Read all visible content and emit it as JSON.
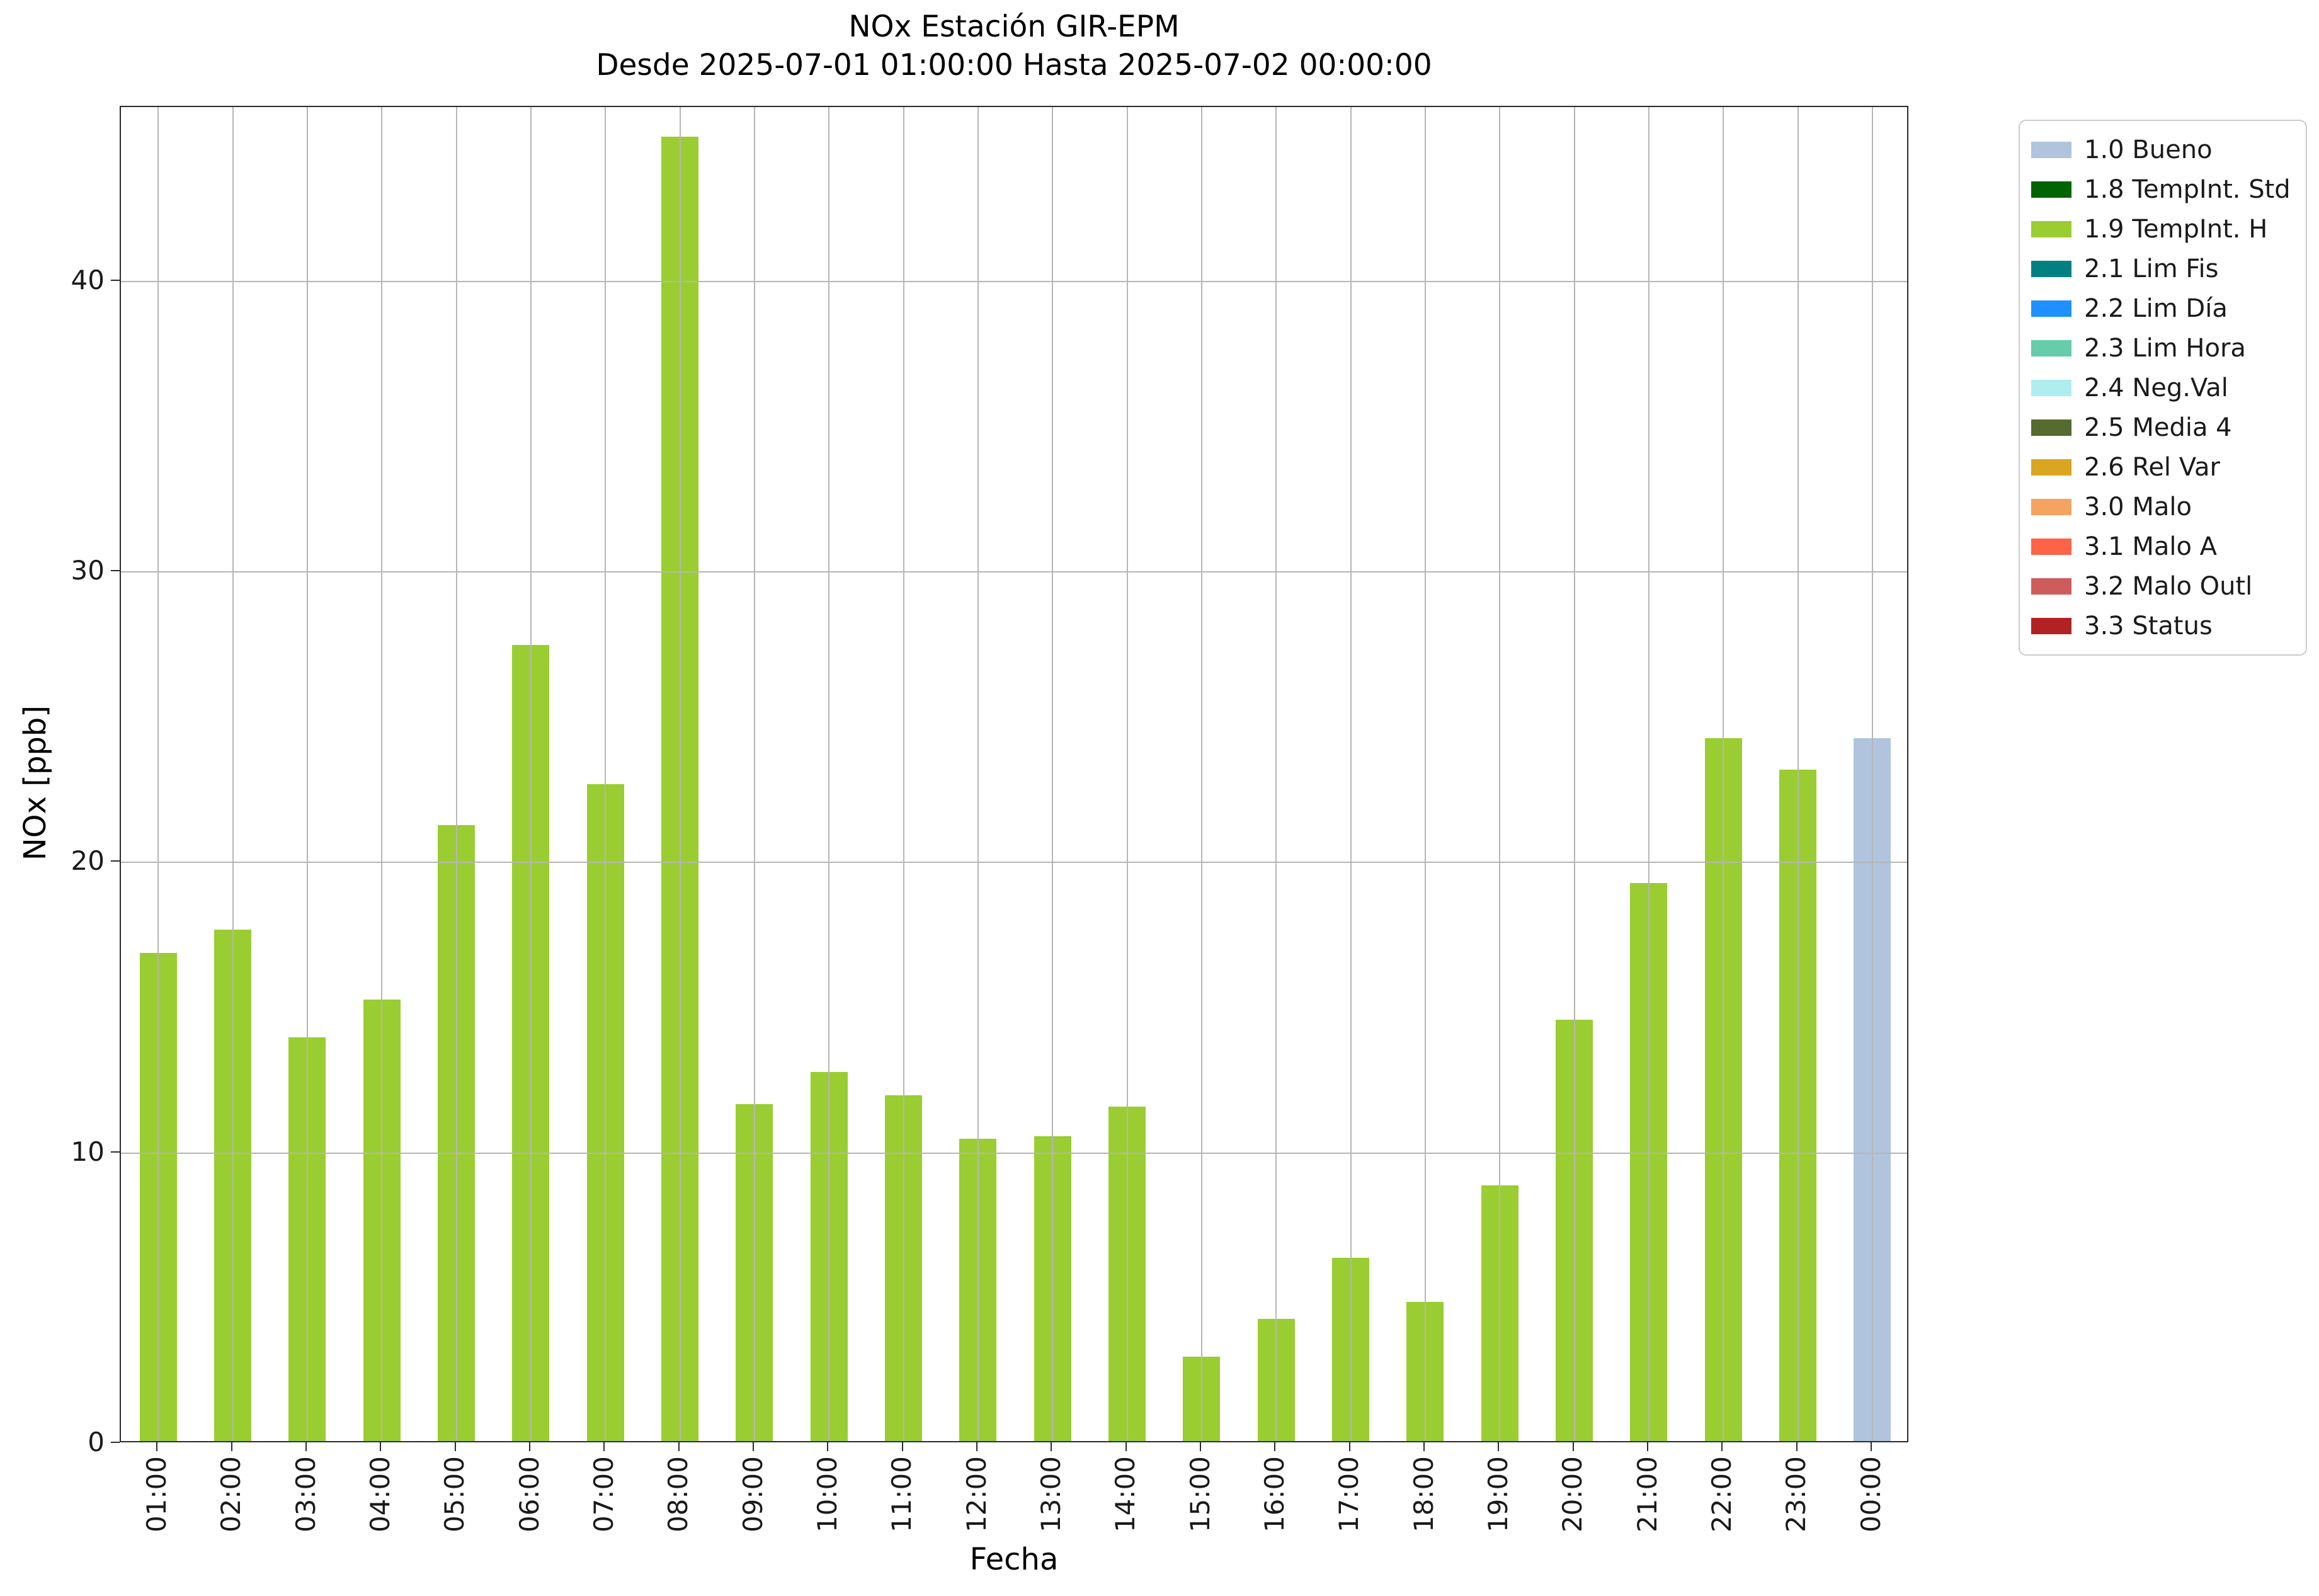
{
  "chart_data": {
    "type": "bar",
    "title": "NOx Estación GIR-EPM",
    "subtitle": "Desde 2025-07-01 01:00:00 Hasta 2025-07-02 00:00:00",
    "xlabel": "Fecha",
    "ylabel": "NOx [ppb]",
    "ylim": [
      0,
      46
    ],
    "yticks": [
      0,
      10,
      20,
      30,
      40
    ],
    "grid": true,
    "grid_color": "#b6b6b6",
    "legend_position": "outside-top-right",
    "categories": [
      "01:00",
      "02:00",
      "03:00",
      "04:00",
      "05:00",
      "06:00",
      "07:00",
      "08:00",
      "09:00",
      "10:00",
      "11:00",
      "12:00",
      "13:00",
      "14:00",
      "15:00",
      "16:00",
      "17:00",
      "18:00",
      "19:00",
      "20:00",
      "21:00",
      "22:00",
      "23:00",
      "00:00"
    ],
    "values": [
      16.8,
      17.6,
      13.9,
      15.2,
      21.2,
      27.4,
      22.6,
      44.9,
      11.6,
      12.7,
      11.9,
      10.4,
      10.5,
      11.5,
      2.9,
      4.2,
      6.3,
      4.8,
      8.8,
      14.5,
      19.2,
      24.2,
      23.1,
      24.2
    ],
    "bar_flags": [
      "1.9",
      "1.9",
      "1.9",
      "1.9",
      "1.9",
      "1.9",
      "1.9",
      "1.9",
      "1.9",
      "1.9",
      "1.9",
      "1.9",
      "1.9",
      "1.9",
      "1.9",
      "1.9",
      "1.9",
      "1.9",
      "1.9",
      "1.9",
      "1.9",
      "1.9",
      "1.9",
      "1.0"
    ],
    "bar_colors": [
      "#9ACD32",
      "#9ACD32",
      "#9ACD32",
      "#9ACD32",
      "#9ACD32",
      "#9ACD32",
      "#9ACD32",
      "#9ACD32",
      "#9ACD32",
      "#9ACD32",
      "#9ACD32",
      "#9ACD32",
      "#9ACD32",
      "#9ACD32",
      "#9ACD32",
      "#9ACD32",
      "#9ACD32",
      "#9ACD32",
      "#9ACD32",
      "#9ACD32",
      "#9ACD32",
      "#9ACD32",
      "#9ACD32",
      "#B0C4DE"
    ],
    "legend": [
      {
        "label": "1.0 Bueno",
        "color": "#B0C4DE"
      },
      {
        "label": "1.8 TempInt. Std",
        "color": "#006400"
      },
      {
        "label": "1.9 TempInt. H",
        "color": "#9ACD32"
      },
      {
        "label": "2.1 Lim Fis",
        "color": "#008080"
      },
      {
        "label": "2.2 Lim Día",
        "color": "#1E90FF"
      },
      {
        "label": "2.3 Lim Hora",
        "color": "#66CDAA"
      },
      {
        "label": "2.4 Neg.Val",
        "color": "#AFEEEE"
      },
      {
        "label": "2.5 Media 4",
        "color": "#556B2F"
      },
      {
        "label": "2.6 Rel Var",
        "color": "#DAA520"
      },
      {
        "label": "3.0 Malo",
        "color": "#F4A460"
      },
      {
        "label": "3.1 Malo A",
        "color": "#FF6347"
      },
      {
        "label": "3.2 Malo Outl",
        "color": "#CD5C5C"
      },
      {
        "label": "3.3 Status",
        "color": "#B22222"
      }
    ]
  }
}
